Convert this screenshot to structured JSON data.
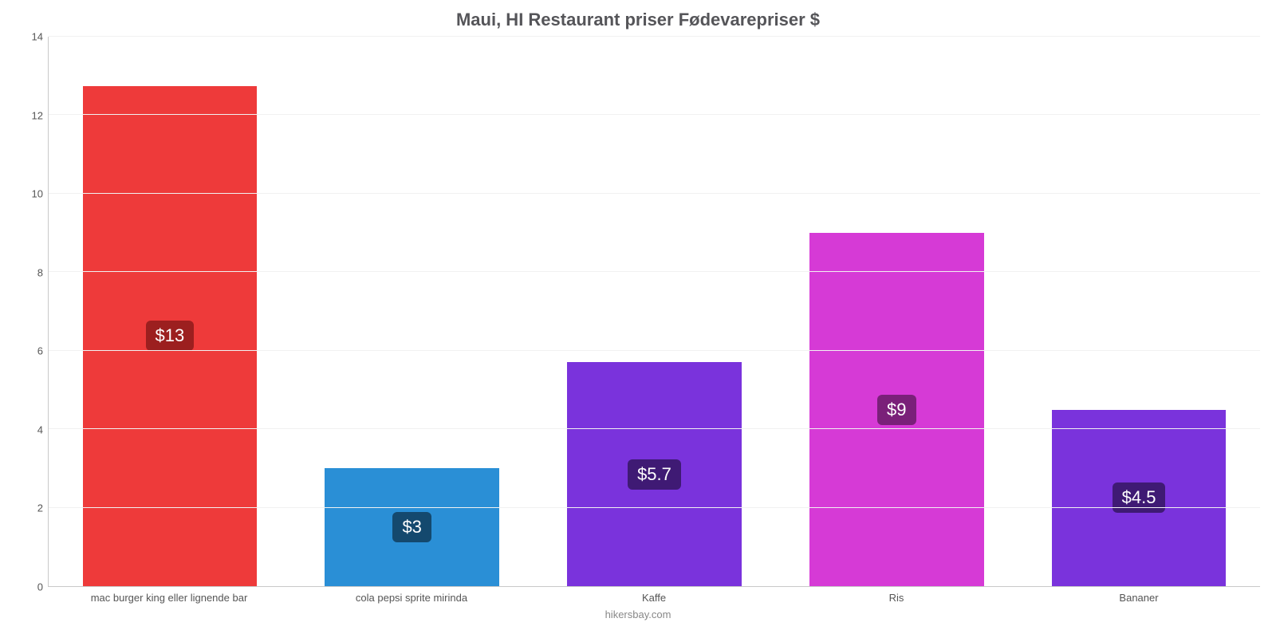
{
  "chart": {
    "type": "bar",
    "title": "Maui, HI Restaurant priser Fødevarepriser $",
    "title_fontsize": 22,
    "title_color": "#555559",
    "background_color": "#ffffff",
    "grid_color": "#f1f1f1",
    "axis_line_color": "#c9c9c9",
    "ylim": [
      0,
      14
    ],
    "ytick_step": 2,
    "yticks": [
      0,
      2,
      4,
      6,
      8,
      10,
      12,
      14
    ],
    "label_fontsize": 13,
    "label_color": "#555555",
    "bar_width_pct": 72,
    "badge_fontsize": 22,
    "categories": [
      "mac burger king eller lignende bar",
      "cola pepsi sprite mirinda",
      "Kaffe",
      "Ris",
      "Bananer"
    ],
    "values": [
      12.75,
      3.0,
      5.7,
      9.0,
      4.5
    ],
    "value_labels": [
      "$13",
      "$3",
      "$5.7",
      "$9",
      "$4.5"
    ],
    "bar_colors": [
      "#ee3a3a",
      "#2a8fd6",
      "#7a33dc",
      "#d63ad6",
      "#7a33dc"
    ],
    "badge_bg_colors": [
      "#9c1f1f",
      "#14496e",
      "#3f1a74",
      "#7a2079",
      "#3f1a74"
    ],
    "credit": "hikersbay.com",
    "credit_color": "#888888"
  }
}
